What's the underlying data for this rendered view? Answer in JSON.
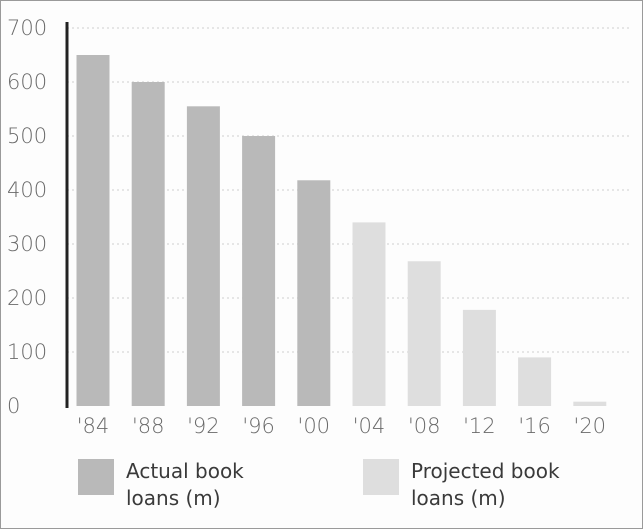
{
  "chart_data": {
    "type": "bar",
    "categories": [
      "'84",
      "'88",
      "'92",
      "'96",
      "'00",
      "'04",
      "'08",
      "'12",
      "'16",
      "'20"
    ],
    "series": [
      {
        "name": "Actual book loans (m)",
        "values": [
          650,
          600,
          555,
          500,
          418,
          null,
          null,
          null,
          null,
          null
        ],
        "color": "#b9b9b9"
      },
      {
        "name": "Projected book loans (m)",
        "values": [
          null,
          null,
          null,
          null,
          null,
          340,
          268,
          178,
          90,
          8
        ],
        "color": "#dedede"
      }
    ],
    "y_ticks": [
      "700",
      "600",
      "500",
      "400",
      "300",
      "200",
      "100",
      "0"
    ],
    "ylim": [
      0,
      700
    ],
    "grid": true,
    "legend_position": "bottom",
    "legend": [
      {
        "line1": "Actual book",
        "line2": "loans (m)",
        "color": "#b9b9b9"
      },
      {
        "line1": "Projected book",
        "line2": "loans (m)",
        "color": "#dedede"
      }
    ]
  }
}
